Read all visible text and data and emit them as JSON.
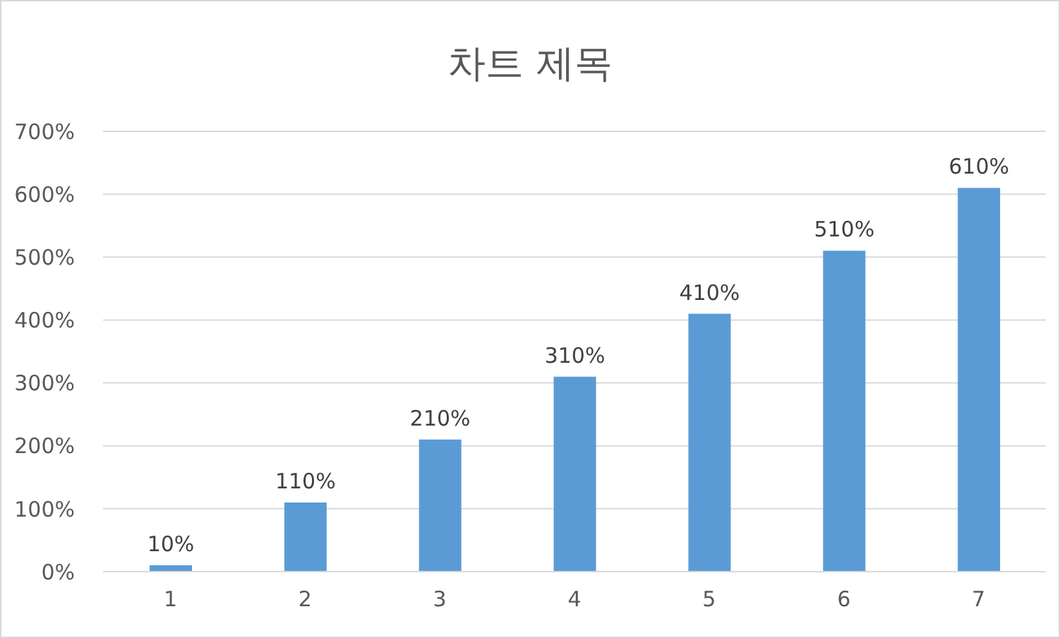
{
  "chart_data": {
    "type": "bar",
    "title": "차트 제목",
    "categories": [
      "1",
      "2",
      "3",
      "4",
      "5",
      "6",
      "7"
    ],
    "values": [
      10,
      110,
      210,
      310,
      410,
      510,
      610
    ],
    "value_labels": [
      "10%",
      "110%",
      "210%",
      "310%",
      "410%",
      "510%",
      "610%"
    ],
    "color": "#5b9bd5",
    "ylim": [
      0,
      700
    ],
    "yticks": [
      {
        "value": 0,
        "label": "0%"
      },
      {
        "value": 100,
        "label": "100%"
      },
      {
        "value": 200,
        "label": "200%"
      },
      {
        "value": 300,
        "label": "300%"
      },
      {
        "value": 400,
        "label": "400%"
      },
      {
        "value": 500,
        "label": "500%"
      },
      {
        "value": 600,
        "label": "600%"
      },
      {
        "value": 700,
        "label": "700%"
      }
    ],
    "grid": "y",
    "legend": false
  }
}
